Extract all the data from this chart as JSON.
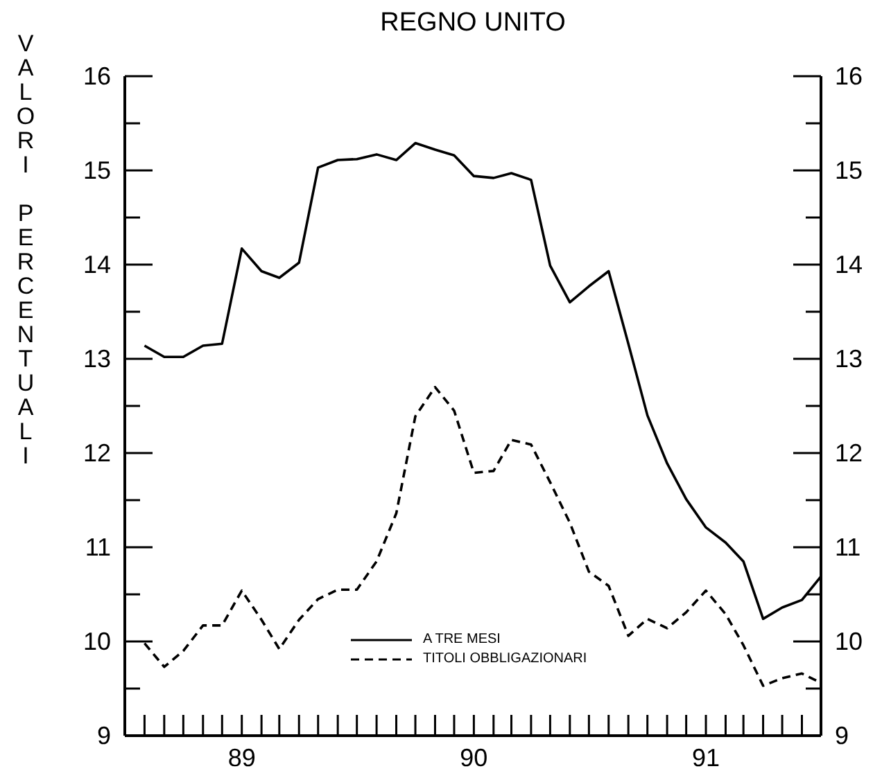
{
  "chart_data": {
    "type": "line",
    "title": "REGNO UNITO",
    "ylabel": "VALORI PERCENTUALI",
    "x": [
      "1988-08",
      "1988-09",
      "1988-10",
      "1988-11",
      "1988-12",
      "1989-01",
      "1989-02",
      "1989-03",
      "1989-04",
      "1989-05",
      "1989-06",
      "1989-07",
      "1989-08",
      "1989-09",
      "1989-10",
      "1989-11",
      "1989-12",
      "1990-01",
      "1990-02",
      "1990-03",
      "1990-04",
      "1990-05",
      "1990-06",
      "1990-07",
      "1990-08",
      "1990-09",
      "1990-10",
      "1990-11",
      "1990-12",
      "1991-01",
      "1991-02",
      "1991-03",
      "1991-04",
      "1991-05",
      "1991-06",
      "1991-07"
    ],
    "series": [
      {
        "name": "A TRE MESI",
        "color": "#000000",
        "line_style": "solid",
        "values": [
          13.14,
          13.02,
          13.02,
          13.14,
          13.16,
          14.17,
          13.93,
          13.86,
          14.02,
          15.03,
          15.11,
          15.12,
          15.17,
          15.11,
          15.29,
          15.22,
          15.16,
          14.94,
          14.92,
          14.97,
          14.9,
          13.99,
          13.6,
          13.77,
          13.93,
          13.16,
          12.4,
          11.89,
          11.51,
          11.21,
          11.05,
          10.85,
          10.24,
          10.36,
          10.44,
          10.69
        ]
      },
      {
        "name": "TITOLI OBBLIGAZIONARI",
        "color": "#000000",
        "line_style": "dashed",
        "values": [
          9.98,
          9.73,
          9.9,
          10.17,
          10.17,
          10.54,
          10.23,
          9.92,
          10.23,
          10.45,
          10.55,
          10.55,
          10.85,
          11.36,
          12.39,
          12.7,
          12.45,
          11.79,
          11.81,
          12.14,
          12.09,
          11.69,
          11.26,
          10.74,
          10.59,
          10.06,
          10.24,
          10.14,
          10.31,
          10.54,
          10.29,
          9.96,
          9.53,
          9.61,
          9.66,
          9.56
        ]
      }
    ],
    "xlim": [
      "1988-07",
      "1991-07"
    ],
    "xticks": [
      {
        "value": "1988-08",
        "label": null
      },
      {
        "value": "1988-09",
        "label": null
      },
      {
        "value": "1988-10",
        "label": null
      },
      {
        "value": "1988-11",
        "label": null
      },
      {
        "value": "1988-12",
        "label": null
      },
      {
        "value": "1989-01",
        "label": "89"
      },
      {
        "value": "1989-02",
        "label": null
      },
      {
        "value": "1989-03",
        "label": null
      },
      {
        "value": "1989-04",
        "label": null
      },
      {
        "value": "1989-05",
        "label": null
      },
      {
        "value": "1989-06",
        "label": null
      },
      {
        "value": "1989-07",
        "label": null
      },
      {
        "value": "1989-08",
        "label": null
      },
      {
        "value": "1989-09",
        "label": null
      },
      {
        "value": "1989-10",
        "label": null
      },
      {
        "value": "1989-11",
        "label": null
      },
      {
        "value": "1989-12",
        "label": null
      },
      {
        "value": "1990-01",
        "label": "90"
      },
      {
        "value": "1990-02",
        "label": null
      },
      {
        "value": "1990-03",
        "label": null
      },
      {
        "value": "1990-04",
        "label": null
      },
      {
        "value": "1990-05",
        "label": null
      },
      {
        "value": "1990-06",
        "label": null
      },
      {
        "value": "1990-07",
        "label": null
      },
      {
        "value": "1990-08",
        "label": null
      },
      {
        "value": "1990-09",
        "label": null
      },
      {
        "value": "1990-10",
        "label": null
      },
      {
        "value": "1990-11",
        "label": null
      },
      {
        "value": "1990-12",
        "label": null
      },
      {
        "value": "1991-01",
        "label": "91"
      },
      {
        "value": "1991-02",
        "label": null
      },
      {
        "value": "1991-03",
        "label": null
      },
      {
        "value": "1991-04",
        "label": null
      },
      {
        "value": "1991-05",
        "label": null
      },
      {
        "value": "1991-06",
        "label": null
      }
    ],
    "ylim": [
      9,
      16
    ],
    "yticks": [
      9,
      {
        "value": 9.5,
        "label": null
      },
      10,
      {
        "value": 10.5,
        "label": null
      },
      11,
      {
        "value": 11.5,
        "label": null
      },
      12,
      {
        "value": 12.5,
        "label": null
      },
      13,
      {
        "value": 13.5,
        "label": null
      },
      14,
      {
        "value": 14.5,
        "label": null
      },
      15,
      {
        "value": 15.5,
        "label": null
      },
      16
    ],
    "y2lim": [
      9,
      16
    ],
    "y2ticks": [
      9,
      {
        "value": 9.5,
        "label": null
      },
      10,
      {
        "value": 10.5,
        "label": null
      },
      11,
      {
        "value": 11.5,
        "label": null
      },
      12,
      {
        "value": 12.5,
        "label": null
      },
      13,
      {
        "value": 13.5,
        "label": null
      },
      14,
      {
        "value": 14.5,
        "label": null
      },
      15,
      {
        "value": 15.5,
        "label": null
      },
      16
    ],
    "grid": false,
    "legend": "bottom",
    "marker": "none"
  }
}
